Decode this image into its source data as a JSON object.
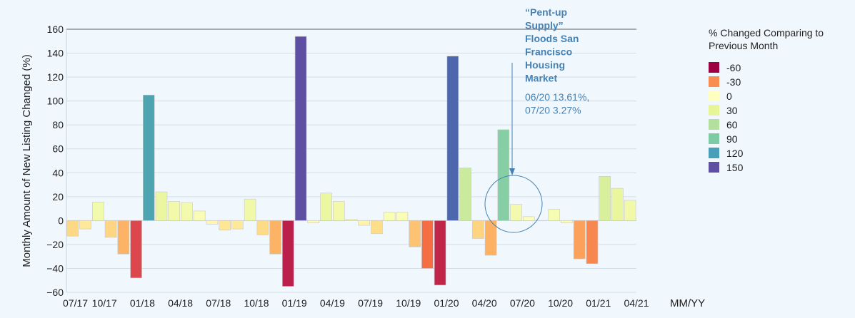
{
  "chart_data": {
    "type": "bar",
    "ylabel": "Monthly Amount of New Listing Changed (%)",
    "xlabel": "MM/YY",
    "ylim": [
      -60,
      160
    ],
    "yticks": [
      -60,
      -40,
      -20,
      0,
      20,
      40,
      60,
      80,
      100,
      120,
      140,
      160
    ],
    "x_tick_labels": [
      "07/17",
      "10/17",
      "01/18",
      "04/18",
      "07/18",
      "10/18",
      "01/19",
      "04/19",
      "07/19",
      "10/19",
      "01/20",
      "04/20",
      "07/20",
      "10/20",
      "01/21",
      "04/21"
    ],
    "categories": [
      "07/17",
      "08/17",
      "09/17",
      "10/17",
      "11/17",
      "12/17",
      "01/18",
      "02/18",
      "03/18",
      "04/18",
      "05/18",
      "06/18",
      "07/18",
      "08/18",
      "09/18",
      "10/18",
      "11/18",
      "12/18",
      "01/19",
      "02/19",
      "03/19",
      "04/19",
      "05/19",
      "06/19",
      "07/19",
      "08/19",
      "09/19",
      "10/19",
      "11/19",
      "12/19",
      "01/20",
      "02/20",
      "03/20",
      "04/20",
      "05/20",
      "06/20",
      "07/20",
      "08/20",
      "09/20",
      "10/20",
      "11/20",
      "12/20",
      "01/21",
      "02/21",
      "03/21"
    ],
    "values": [
      -13,
      -7,
      15.5,
      -14,
      -28,
      -48,
      105,
      24,
      16,
      15,
      8,
      -3,
      -8,
      -7,
      18,
      -12,
      -28,
      -55,
      154,
      -2,
      23,
      16,
      1,
      -4,
      -11,
      7,
      7,
      -22,
      -40,
      -54,
      137.5,
      44,
      -15,
      -29,
      76,
      13.61,
      3.27,
      0,
      9.5,
      -2,
      -32,
      -36,
      37,
      27,
      17
    ],
    "colorscale": {
      "title": "% Changed Comparing to Previous Month",
      "stops": [
        {
          "value": -60,
          "label": "-60",
          "color": "#9e0142"
        },
        {
          "value": -50,
          "label": "",
          "color": "#d53e4f"
        },
        {
          "value": -40,
          "label": "",
          "color": "#f46d43"
        },
        {
          "value": -30,
          "label": "-30",
          "color": "#fdae61"
        },
        {
          "value": -10,
          "label": "",
          "color": "#fee08b"
        },
        {
          "value": 0,
          "label": "0",
          "color": "#ffffbf"
        },
        {
          "value": 30,
          "label": "30",
          "color": "#e6f598"
        },
        {
          "value": 60,
          "label": "60",
          "color": "#abdda4"
        },
        {
          "value": 90,
          "label": "90",
          "color": "#66c2a5"
        },
        {
          "value": 120,
          "label": "120",
          "color": "#3288bd"
        },
        {
          "value": 150,
          "label": "150",
          "color": "#5e4fa2"
        }
      ]
    },
    "annotation": {
      "title_lines": [
        "“Pent-up",
        "Supply”",
        "Floods San",
        "Francisco",
        "Housing",
        "Market"
      ],
      "body_lines": [
        "06/20 13.61%,",
        "07/20 3.27%"
      ],
      "color": "#4682b4"
    },
    "legend_entries": [
      {
        "label": "-60",
        "color": "#9e0142"
      },
      {
        "label": "-30",
        "color": "#f88d52"
      },
      {
        "label": "0",
        "color": "#ffffbf"
      },
      {
        "label": "30",
        "color": "#e6f598"
      },
      {
        "label": "60",
        "color": "#b3df9f"
      },
      {
        "label": "90",
        "color": "#7ccba5"
      },
      {
        "label": "120",
        "color": "#4a9fb8"
      },
      {
        "label": "150",
        "color": "#5e4fa2"
      }
    ],
    "grid": true
  }
}
